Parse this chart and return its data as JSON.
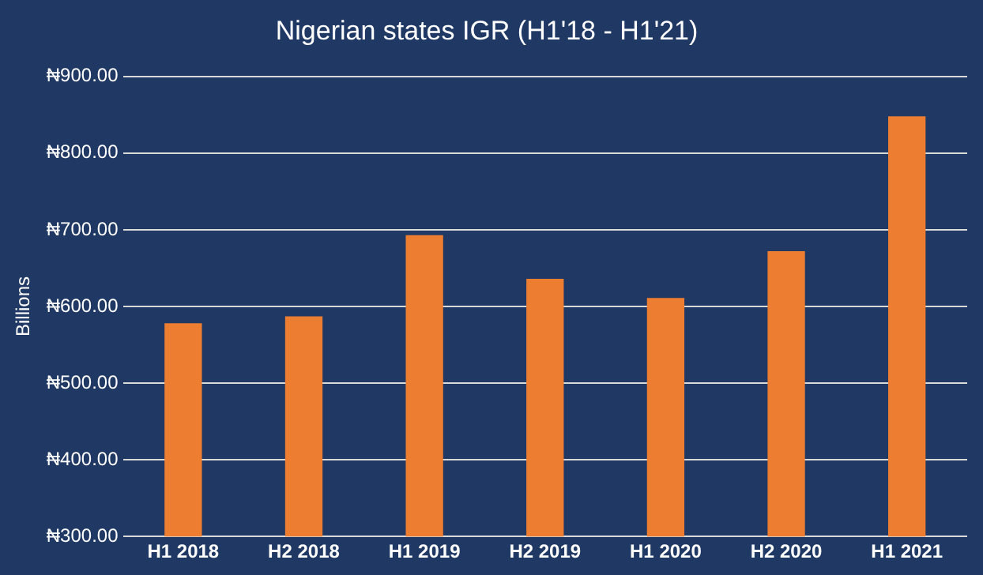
{
  "chart_data": {
    "type": "bar",
    "title": "Nigerian states IGR (H1'18 - H1'21)",
    "ylabel": "Billions",
    "categories": [
      "H1 2018",
      "H2 2018",
      "H1 2019",
      "H2 2019",
      "H1 2020",
      "H2 2020",
      "H1 2021"
    ],
    "values": [
      578,
      587,
      693,
      636,
      611,
      672,
      848
    ],
    "color": "#ed7d31",
    "ylim": [
      300,
      900
    ],
    "yticks": [
      {
        "value": 300,
        "label": "₦300.00"
      },
      {
        "value": 400,
        "label": "₦400.00"
      },
      {
        "value": 500,
        "label": "₦500.00"
      },
      {
        "value": 600,
        "label": "₦600.00"
      },
      {
        "value": 700,
        "label": "₦700.00"
      },
      {
        "value": 800,
        "label": "₦800.00"
      },
      {
        "value": 900,
        "label": "₦900.00"
      }
    ],
    "grid": "y",
    "legend": false
  }
}
